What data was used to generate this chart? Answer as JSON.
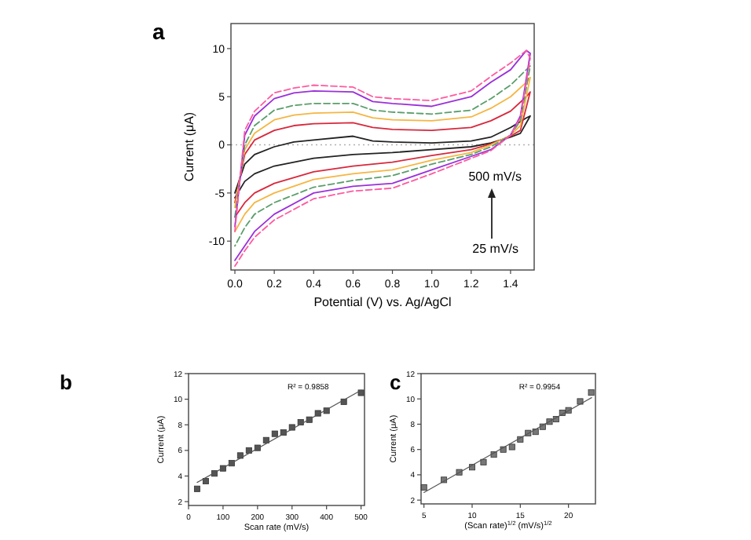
{
  "chart_data": [
    {
      "type": "line",
      "title": "a",
      "xlabel": "Potential (V) vs. Ag/AgCl",
      "ylabel": "Current (μA)",
      "xlim": [
        -0.02,
        1.52
      ],
      "ylim": [
        -13,
        12.6
      ],
      "xticks": [
        {
          "value": 0,
          "label": "0.0"
        },
        {
          "value": 0.2,
          "label": "0.2"
        },
        {
          "value": 0.4,
          "label": "0.4"
        },
        {
          "value": 0.6,
          "label": "0.6"
        },
        {
          "value": 0.8,
          "label": "0.8"
        },
        {
          "value": 1,
          "label": "1.0"
        },
        {
          "value": 1.2,
          "label": "1.2"
        },
        {
          "value": 1.4,
          "label": "1.4"
        }
      ],
      "yticks": [
        -10,
        -5,
        0,
        5,
        10
      ],
      "ref_lines": [
        {
          "axis": "y",
          "value": 0,
          "color": "#b0b0b0",
          "line_style": "dotted"
        }
      ],
      "annotations": [
        "500 mV/s",
        "25 mV/s"
      ],
      "series": [
        {
          "color": "#222222",
          "line_style": "solid",
          "x": [
            0,
            0.05,
            0.1,
            0.2,
            0.3,
            0.4,
            0.6,
            0.7,
            0.8,
            1.0,
            1.2,
            1.3,
            1.4,
            1.48,
            1.5,
            1.45,
            1.4,
            1.3,
            1.2,
            1.0,
            0.8,
            0.6,
            0.4,
            0.2,
            0.1,
            0.05,
            0
          ],
          "values": [
            -5,
            -2,
            -1,
            -0.2,
            0.3,
            0.5,
            0.9,
            0.4,
            0.3,
            0.2,
            0.4,
            0.8,
            1.8,
            2.8,
            3,
            1.2,
            0.8,
            0.2,
            -0.2,
            -0.5,
            -0.8,
            -1.0,
            -1.4,
            -2.2,
            -3,
            -3.8,
            -5.5
          ]
        },
        {
          "color": "#d8283c",
          "line_style": "solid",
          "x": [
            0,
            0.05,
            0.1,
            0.2,
            0.3,
            0.4,
            0.6,
            0.7,
            0.8,
            1.0,
            1.2,
            1.3,
            1.4,
            1.48,
            1.5,
            1.45,
            1.4,
            1.3,
            1.2,
            1.0,
            0.8,
            0.6,
            0.4,
            0.2,
            0.1,
            0.05,
            0
          ],
          "values": [
            -6,
            -1,
            0.5,
            1.5,
            2,
            2.2,
            2.3,
            1.8,
            1.6,
            1.5,
            1.8,
            2.5,
            3.5,
            5,
            5.5,
            1.5,
            0.9,
            0.1,
            -0.5,
            -1.1,
            -1.8,
            -2.2,
            -2.8,
            -4,
            -5,
            -6,
            -7.5
          ]
        },
        {
          "color": "#f5b642",
          "line_style": "solid",
          "x": [
            0,
            0.05,
            0.1,
            0.2,
            0.3,
            0.4,
            0.6,
            0.7,
            0.8,
            1.0,
            1.2,
            1.3,
            1.4,
            1.48,
            1.5,
            1.45,
            1.4,
            1.3,
            1.2,
            1.0,
            0.8,
            0.6,
            0.4,
            0.2,
            0.1,
            0.05,
            0
          ],
          "values": [
            -6.5,
            -0.5,
            1.2,
            2.6,
            3.1,
            3.3,
            3.4,
            2.8,
            2.6,
            2.5,
            2.9,
            3.8,
            5,
            6.5,
            7,
            2,
            1,
            0,
            -0.8,
            -1.6,
            -2.6,
            -3,
            -3.6,
            -5,
            -6,
            -7.2,
            -9
          ]
        },
        {
          "color": "#5a9e6a",
          "line_style": "dashed",
          "x": [
            0,
            0.05,
            0.1,
            0.2,
            0.3,
            0.4,
            0.6,
            0.7,
            0.8,
            1.0,
            1.2,
            1.3,
            1.4,
            1.48,
            1.5,
            1.45,
            1.4,
            1.3,
            1.2,
            1.0,
            0.8,
            0.6,
            0.4,
            0.2,
            0.1,
            0.05,
            0
          ],
          "values": [
            -7.5,
            0,
            2,
            3.6,
            4.1,
            4.3,
            4.3,
            3.6,
            3.4,
            3.2,
            3.6,
            4.8,
            6.2,
            7.8,
            8.2,
            2.5,
            1,
            -0.2,
            -1,
            -2,
            -3.2,
            -3.7,
            -4.4,
            -6,
            -7.2,
            -8.6,
            -10.5
          ]
        },
        {
          "color": "#9b30d9",
          "line_style": "solid",
          "x": [
            0,
            0.05,
            0.1,
            0.2,
            0.3,
            0.4,
            0.6,
            0.7,
            0.8,
            1.0,
            1.2,
            1.3,
            1.4,
            1.48,
            1.5,
            1.45,
            1.4,
            1.3,
            1.2,
            1.0,
            0.8,
            0.6,
            0.4,
            0.2,
            0.1,
            0.05,
            0
          ],
          "values": [
            -8.5,
            1,
            3,
            4.8,
            5.4,
            5.6,
            5.5,
            4.5,
            4.3,
            4.0,
            5.0,
            6.5,
            7.8,
            9.8,
            9.5,
            3,
            1,
            -0.5,
            -1.2,
            -2.6,
            -4.0,
            -4.3,
            -5.0,
            -7.2,
            -9,
            -10.5,
            -12
          ]
        },
        {
          "color": "#ff5aa0",
          "line_style": "dashed",
          "x": [
            0,
            0.05,
            0.1,
            0.2,
            0.3,
            0.4,
            0.6,
            0.7,
            0.8,
            1.0,
            1.2,
            1.3,
            1.4,
            1.48,
            1.5,
            1.45,
            1.4,
            1.3,
            1.2,
            1.0,
            0.8,
            0.6,
            0.4,
            0.2,
            0.1,
            0.05,
            0
          ],
          "values": [
            -9,
            1.5,
            3.5,
            5.4,
            5.9,
            6.2,
            6.0,
            5.0,
            4.8,
            4.6,
            5.6,
            7.1,
            8.5,
            9.8,
            9,
            2.8,
            1,
            -0.6,
            -1.4,
            -3,
            -4.5,
            -4.8,
            -5.6,
            -7.8,
            -9.6,
            -11,
            -12.6
          ]
        }
      ]
    },
    {
      "type": "scatter",
      "title": "b",
      "xlabel": "Scan rate (mV/s)",
      "ylabel": "Current (μA)",
      "xlim": [
        0,
        510
      ],
      "ylim": [
        1.7,
        12
      ],
      "xticks": [
        0,
        100,
        200,
        300,
        400,
        500
      ],
      "yticks": [
        2,
        4,
        6,
        8,
        10,
        12
      ],
      "annotations": [
        "R² = 0.9858"
      ],
      "series": [
        {
          "type": "scatter",
          "marker": "square",
          "color": "#555555",
          "x": [
            25,
            50,
            75,
            100,
            125,
            150,
            175,
            200,
            225,
            250,
            275,
            300,
            325,
            350,
            375,
            400,
            450,
            500
          ],
          "values": [
            3.0,
            3.6,
            4.2,
            4.6,
            5.0,
            5.6,
            6.0,
            6.2,
            6.8,
            7.3,
            7.4,
            7.8,
            8.2,
            8.4,
            8.9,
            9.1,
            9.8,
            10.5
          ]
        },
        {
          "type": "line",
          "color": "#555555",
          "x": [
            25,
            500
          ],
          "values": [
            3.5,
            10.7
          ]
        }
      ]
    },
    {
      "type": "scatter",
      "title": "c",
      "xlabel": "(Scan rate)$^{1/2}$ (mV/s)$^{1/2}$",
      "ylabel": "Current (μA)",
      "xlim": [
        4.7,
        22.8
      ],
      "ylim": [
        1.7,
        12
      ],
      "xticks": [
        5,
        10,
        15,
        20
      ],
      "yticks": [
        2,
        4,
        6,
        8,
        10,
        12
      ],
      "annotations": [
        "R² = 0.9954"
      ],
      "series": [
        {
          "type": "scatter",
          "marker": "square",
          "color": "#777777",
          "x": [
            5,
            7.07,
            8.66,
            10,
            11.18,
            12.25,
            13.23,
            14.14,
            15,
            15.81,
            16.58,
            17.32,
            18.03,
            18.71,
            19.36,
            20,
            21.21,
            22.36
          ],
          "values": [
            3.0,
            3.6,
            4.2,
            4.6,
            5.0,
            5.6,
            6.0,
            6.2,
            6.8,
            7.3,
            7.4,
            7.8,
            8.2,
            8.4,
            8.9,
            9.1,
            9.8,
            10.5
          ]
        },
        {
          "type": "line",
          "color": "#555555",
          "x": [
            5,
            22.4
          ],
          "values": [
            2.6,
            10.1
          ]
        }
      ]
    }
  ]
}
